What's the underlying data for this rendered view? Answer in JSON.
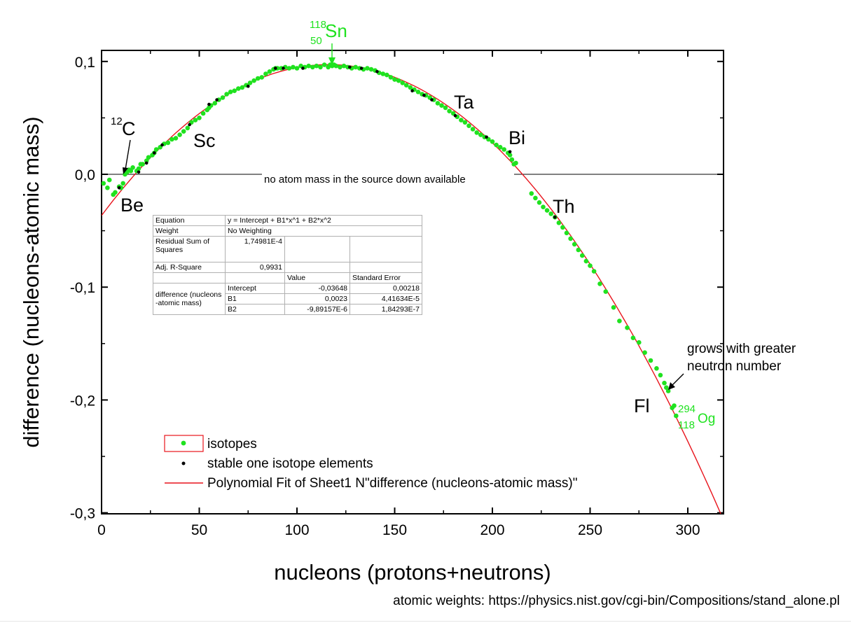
{
  "chart_data": {
    "type": "scatter",
    "xlabel": "nucleons (protons+neutrons)",
    "ylabel": "difference (nucleons-atomic mass)",
    "xlim": [
      0,
      320
    ],
    "ylim": [
      -0.3,
      0.11
    ],
    "x_ticks": [
      0,
      50,
      100,
      150,
      200,
      250,
      300
    ],
    "x_tick_labels": [
      "0",
      "50",
      "100",
      "150",
      "200",
      "250",
      "300"
    ],
    "y_ticks": [
      0.1,
      0.0,
      -0.1,
      -0.2,
      -0.3
    ],
    "y_tick_labels": [
      "0,1",
      "0,0",
      "-0,1",
      "-0,2",
      "-0,3"
    ],
    "reference_line": {
      "y": 0.0,
      "label": "no atom mass in the source down available"
    },
    "fit": {
      "intercept": -0.03648,
      "b1": 0.0023,
      "b2": -9.89157e-06,
      "color": "#e8141c"
    },
    "series": [
      {
        "name": "isotopes",
        "color": "#1fe21f",
        "points": [
          [
            1,
            -0.008
          ],
          [
            3,
            -0.012
          ],
          [
            4,
            -0.005
          ],
          [
            6,
            -0.018
          ],
          [
            7,
            -0.016
          ],
          [
            9,
            -0.011
          ],
          [
            10,
            -0.012
          ],
          [
            11,
            -0.008
          ],
          [
            12,
            0.0
          ],
          [
            13,
            0.002
          ],
          [
            14,
            0.004
          ],
          [
            15,
            0.003
          ],
          [
            16,
            0.006
          ],
          [
            18,
            0.003
          ],
          [
            19,
            0.005
          ],
          [
            20,
            0.009
          ],
          [
            21,
            0.009
          ],
          [
            23,
            0.012
          ],
          [
            24,
            0.015
          ],
          [
            26,
            0.017
          ],
          [
            27,
            0.019
          ],
          [
            28,
            0.022
          ],
          [
            30,
            0.024
          ],
          [
            32,
            0.027
          ],
          [
            34,
            0.028
          ],
          [
            36,
            0.031
          ],
          [
            38,
            0.032
          ],
          [
            40,
            0.035
          ],
          [
            42,
            0.038
          ],
          [
            44,
            0.041
          ],
          [
            46,
            0.046
          ],
          [
            48,
            0.048
          ],
          [
            50,
            0.05
          ],
          [
            52,
            0.054
          ],
          [
            54,
            0.057
          ],
          [
            55,
            0.059
          ],
          [
            56,
            0.061
          ],
          [
            58,
            0.063
          ],
          [
            60,
            0.066
          ],
          [
            62,
            0.068
          ],
          [
            64,
            0.071
          ],
          [
            66,
            0.073
          ],
          [
            68,
            0.074
          ],
          [
            70,
            0.076
          ],
          [
            72,
            0.077
          ],
          [
            74,
            0.079
          ],
          [
            76,
            0.081
          ],
          [
            78,
            0.083
          ],
          [
            80,
            0.085
          ],
          [
            82,
            0.086
          ],
          [
            84,
            0.089
          ],
          [
            86,
            0.091
          ],
          [
            88,
            0.093
          ],
          [
            89,
            0.094
          ],
          [
            90,
            0.094
          ],
          [
            92,
            0.094
          ],
          [
            94,
            0.095
          ],
          [
            96,
            0.094
          ],
          [
            98,
            0.095
          ],
          [
            100,
            0.094
          ],
          [
            102,
            0.096
          ],
          [
            104,
            0.095
          ],
          [
            106,
            0.096
          ],
          [
            108,
            0.095
          ],
          [
            110,
            0.096
          ],
          [
            112,
            0.095
          ],
          [
            114,
            0.097
          ],
          [
            116,
            0.095
          ],
          [
            117,
            0.097
          ],
          [
            118,
            0.096
          ],
          [
            119,
            0.097
          ],
          [
            120,
            0.096
          ],
          [
            122,
            0.095
          ],
          [
            124,
            0.096
          ],
          [
            126,
            0.095
          ],
          [
            128,
            0.094
          ],
          [
            130,
            0.095
          ],
          [
            132,
            0.094
          ],
          [
            134,
            0.093
          ],
          [
            136,
            0.094
          ],
          [
            138,
            0.093
          ],
          [
            140,
            0.092
          ],
          [
            142,
            0.09
          ],
          [
            144,
            0.089
          ],
          [
            146,
            0.088
          ],
          [
            148,
            0.086
          ],
          [
            150,
            0.084
          ],
          [
            152,
            0.083
          ],
          [
            154,
            0.081
          ],
          [
            156,
            0.079
          ],
          [
            158,
            0.077
          ],
          [
            160,
            0.075
          ],
          [
            162,
            0.073
          ],
          [
            164,
            0.071
          ],
          [
            166,
            0.07
          ],
          [
            168,
            0.068
          ],
          [
            170,
            0.066
          ],
          [
            172,
            0.063
          ],
          [
            174,
            0.061
          ],
          [
            176,
            0.059
          ],
          [
            178,
            0.056
          ],
          [
            180,
            0.054
          ],
          [
            182,
            0.051
          ],
          [
            184,
            0.048
          ],
          [
            186,
            0.046
          ],
          [
            188,
            0.043
          ],
          [
            190,
            0.04
          ],
          [
            192,
            0.037
          ],
          [
            194,
            0.035
          ],
          [
            196,
            0.033
          ],
          [
            198,
            0.031
          ],
          [
            200,
            0.029
          ],
          [
            202,
            0.026
          ],
          [
            204,
            0.024
          ],
          [
            206,
            0.022
          ],
          [
            208,
            0.019
          ],
          [
            209,
            0.017
          ],
          [
            210,
            0.013
          ],
          [
            211,
            0.009
          ],
          [
            212,
            0.01
          ],
          [
            220,
            -0.017
          ],
          [
            222,
            -0.021
          ],
          [
            224,
            -0.025
          ],
          [
            226,
            -0.029
          ],
          [
            228,
            -0.032
          ],
          [
            230,
            -0.035
          ],
          [
            232,
            -0.038
          ],
          [
            234,
            -0.043
          ],
          [
            236,
            -0.047
          ],
          [
            238,
            -0.052
          ],
          [
            240,
            -0.057
          ],
          [
            242,
            -0.062
          ],
          [
            244,
            -0.067
          ],
          [
            246,
            -0.072
          ],
          [
            248,
            -0.077
          ],
          [
            250,
            -0.081
          ],
          [
            252,
            -0.086
          ],
          [
            255,
            -0.097
          ],
          [
            258,
            -0.104
          ],
          [
            262,
            -0.118
          ],
          [
            265,
            -0.13
          ],
          [
            269,
            -0.136
          ],
          [
            272,
            -0.145
          ],
          [
            275,
            -0.149
          ],
          [
            278,
            -0.158
          ],
          [
            281,
            -0.165
          ],
          [
            284,
            -0.172
          ],
          [
            286,
            -0.178
          ],
          [
            288,
            -0.185
          ],
          [
            289,
            -0.189
          ],
          [
            290,
            -0.192
          ],
          [
            292,
            -0.207
          ],
          [
            293,
            -0.205
          ],
          [
            294,
            -0.214
          ]
        ]
      },
      {
        "name": "stable one isotope elements",
        "color": "#000000",
        "points": [
          [
            9,
            -0.012
          ],
          [
            19,
            0.002
          ],
          [
            23,
            0.01
          ],
          [
            27,
            0.019
          ],
          [
            31,
            0.026
          ],
          [
            45,
            0.044
          ],
          [
            55,
            0.062
          ],
          [
            59,
            0.066
          ],
          [
            75,
            0.078
          ],
          [
            89,
            0.094
          ],
          [
            93,
            0.094
          ],
          [
            103,
            0.094
          ],
          [
            127,
            0.095
          ],
          [
            133,
            0.094
          ],
          [
            141,
            0.091
          ],
          [
            159,
            0.074
          ],
          [
            165,
            0.07
          ],
          [
            169,
            0.066
          ],
          [
            181,
            0.052
          ],
          [
            197,
            0.033
          ],
          [
            209,
            0.02
          ],
          [
            232,
            -0.038
          ]
        ]
      },
      {
        "name": "Polynomial Fit of Sheet1 N\"difference (nucleons-atomic mass)\"",
        "color": "#e8141c"
      }
    ],
    "point_annotations": [
      {
        "text": "C",
        "superscript": "12"
      },
      {
        "text": "Be"
      },
      {
        "text": "Sc"
      },
      {
        "text": "Sn",
        "superscript": "118",
        "subscript": "50"
      },
      {
        "text": "Ta"
      },
      {
        "text": "Bi"
      },
      {
        "text": "Th"
      },
      {
        "text": "Fl"
      },
      {
        "text": "Og",
        "superscript": "294",
        "subscript": "118"
      },
      {
        "text_lines": [
          "grows with greater",
          "neutron number"
        ]
      }
    ],
    "stats_table": {
      "equation_label": "Equation",
      "equation_value": "y = Intercept + B1*x^1 + B2*x^2",
      "weight_label": "Weight",
      "weight_value": "No Weighting",
      "rss_label": "Residual Sum of Squares",
      "rss_value": "1,74981E-4",
      "r2_label": "Adj. R-Square",
      "r2_value": "0,9931",
      "col_value": "Value",
      "col_stderr": "Standard Error",
      "group_label": "difference (nucleons-atomic mass)",
      "rows": [
        {
          "param": "Intercept",
          "value": "-0,03648",
          "stderr": "0,00218"
        },
        {
          "param": "B1",
          "value": "0,0023",
          "stderr": "4,41634E-5"
        },
        {
          "param": "B2",
          "value": "-9,89157E-6",
          "stderr": "1,84293E-7"
        }
      ]
    }
  },
  "source_note": "atomic weights: https://physics.nist.gov/cgi-bin/Compositions/stand_alone.pl"
}
